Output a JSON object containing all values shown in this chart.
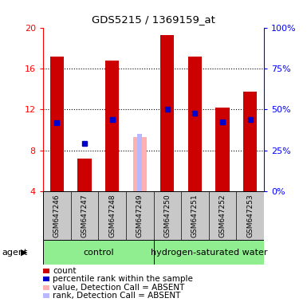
{
  "title": "GDS5215 / 1369159_at",
  "samples": [
    "GSM647246",
    "GSM647247",
    "GSM647248",
    "GSM647249",
    "GSM647250",
    "GSM647251",
    "GSM647252",
    "GSM647253"
  ],
  "red_values": [
    17.2,
    7.2,
    16.8,
    null,
    19.3,
    17.2,
    12.2,
    13.7
  ],
  "blue_values": [
    10.7,
    8.7,
    11.0,
    null,
    12.0,
    11.6,
    10.8,
    11.0
  ],
  "pink_value": [
    null,
    null,
    null,
    9.3,
    null,
    null,
    null,
    null
  ],
  "lavender_value": [
    null,
    null,
    null,
    9.6,
    null,
    null,
    null,
    null
  ],
  "ylim_left": [
    4,
    20
  ],
  "ylim_right": [
    0,
    100
  ],
  "left_ticks": [
    4,
    8,
    12,
    16,
    20
  ],
  "right_ticks": [
    0,
    25,
    50,
    75,
    100
  ],
  "grid_lines": [
    8,
    12,
    16
  ],
  "color_red": "#cc0000",
  "color_blue": "#0000cc",
  "color_pink": "#ffb0b0",
  "color_lavender": "#b8b8ff",
  "color_green_light": "#90ee90",
  "color_gray": "#c8c8c8",
  "color_white": "#ffffff",
  "group1_label": "control",
  "group2_label": "hydrogen-saturated water",
  "legend_items": [
    {
      "color": "#cc0000",
      "label": "count"
    },
    {
      "color": "#0000cc",
      "label": "percentile rank within the sample"
    },
    {
      "color": "#ffb0b0",
      "label": "value, Detection Call = ABSENT"
    },
    {
      "color": "#b8b8ff",
      "label": "rank, Detection Call = ABSENT"
    }
  ],
  "bar_width": 0.5,
  "blue_marker_size": 4.5
}
